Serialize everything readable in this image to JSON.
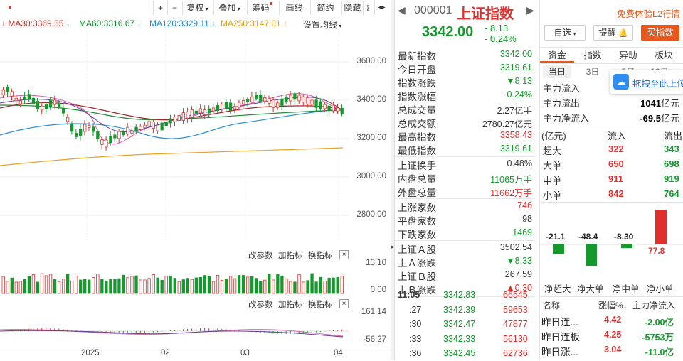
{
  "toolbar": {
    "plus": "+",
    "minus": "−",
    "fuquan": "复权",
    "diejia": "叠加",
    "chouma": "筹码",
    "huaxian": "画线",
    "jianyue": "简约",
    "yincang": "隐藏",
    "nav": "◂▸"
  },
  "ma": {
    "ma30": "MA30:3369.55",
    "ma60": "MA60:3316.67",
    "ma120": "MA120:3329.11",
    "ma250": "MA250:3147.01",
    "setting": "设置均线"
  },
  "price_axis": [
    "3600.00",
    "3400.00",
    "3200.00",
    "3000.00",
    "2800.00"
  ],
  "volume_panel": {
    "change_param": "改参数",
    "add_indicator": "加指标",
    "switch_indicator": "换指标",
    "top": "13.10",
    "bottom": "0.00"
  },
  "macd_panel": {
    "change_param": "改参数",
    "add_indicator": "加指标",
    "switch_indicator": "换指标",
    "top": "161.14",
    "bottom": "-56.27"
  },
  "x_axis": [
    "2025",
    "02",
    "03",
    "04"
  ],
  "header": {
    "code": "000001",
    "name": "上证指数",
    "price": "3342.00",
    "change": "- 8.13",
    "change_pct": "- 0.24%",
    "free_l2": "免费体验L2行情",
    "watch": "自选",
    "alert": "提醒",
    "buy": "买指数"
  },
  "quote_rows": [
    {
      "k": "最新指数",
      "v": "3342.00",
      "c": "green"
    },
    {
      "k": "今日开盘",
      "v": "3319.61",
      "c": "green"
    },
    {
      "k": "指数涨跌",
      "v": "▼8.13",
      "c": "green"
    },
    {
      "k": "指数涨幅",
      "v": "-0.24%",
      "c": "green"
    },
    {
      "k": "总成交量",
      "v": "2.27亿手",
      "c": "black"
    },
    {
      "k": "总成交额",
      "v": "2780.27亿元",
      "c": "black"
    },
    {
      "k": "最高指数",
      "v": "3358.43",
      "c": "red"
    },
    {
      "k": "最低指数",
      "v": "3319.61",
      "c": "green"
    },
    {
      "k": "上证换手",
      "v": "0.48%",
      "c": "black"
    },
    {
      "k": "内盘总量",
      "v": "11065万手",
      "c": "green"
    },
    {
      "k": "外盘总量",
      "v": "11662万手",
      "c": "red"
    },
    {
      "k": "上涨家数",
      "v": "746",
      "c": "red"
    },
    {
      "k": "平盘家数",
      "v": "98",
      "c": "black"
    },
    {
      "k": "下跌家数",
      "v": "1469",
      "c": "green"
    },
    {
      "k": "上证Ａ股",
      "v": "3502.54",
      "c": "black"
    },
    {
      "k": "上Ａ涨跌",
      "v": "▼8.33",
      "c": "green"
    },
    {
      "k": "上证Ｂ股",
      "v": "267.59",
      "c": "black"
    },
    {
      "k": "上Ｂ涨跌",
      "v": "▲0.30",
      "c": "red"
    }
  ],
  "ticks": [
    {
      "t": "11:05",
      "p": "3342.83",
      "v": "66545"
    },
    {
      "t": ":27",
      "p": "3342.39",
      "v": "59653"
    },
    {
      "t": ":30",
      "p": "3342.47",
      "v": "47877"
    },
    {
      "t": ":33",
      "p": "3342.33",
      "v": "56130"
    },
    {
      "t": ":36",
      "p": "3342.45",
      "v": "62736"
    }
  ],
  "tabs": [
    "资金",
    "指数",
    "异动",
    "板块"
  ],
  "subtabs": [
    "当日",
    "3日",
    "5日",
    "10日"
  ],
  "drag_tip": "拖拽至此上传",
  "flow": [
    {
      "k": "主力流入",
      "v": ""
    },
    {
      "k": "主力流出",
      "v": "1041",
      "u": "亿元"
    },
    {
      "k": "主力净流入",
      "v": "-69.5",
      "u": "亿元"
    }
  ],
  "flow_table": {
    "unit": "(亿元)",
    "in": "流入",
    "out": "流出",
    "rows": [
      {
        "k": "超大",
        "in": "322",
        "out": "343"
      },
      {
        "k": "大单",
        "in": "650",
        "out": "698"
      },
      {
        "k": "中单",
        "in": "911",
        "out": "919"
      },
      {
        "k": "小单",
        "in": "842",
        "out": "764"
      }
    ]
  },
  "chart_data": {
    "type": "bar",
    "categories": [
      "净超大",
      "净大单",
      "净中单",
      "净小单"
    ],
    "values": [
      -21.1,
      -48.4,
      -8.3,
      77.8
    ],
    "labels": [
      "-21.1",
      "-48.4",
      "-8.30",
      "77.8"
    ]
  },
  "sector_header": {
    "name": "名称",
    "pct": "涨幅%↓",
    "flow": "主力净流入"
  },
  "sectors": [
    {
      "n": "昨日连...",
      "p": "4.42",
      "f": "-2.00亿"
    },
    {
      "n": "昨日连板",
      "p": "4.25",
      "f": "-5753万"
    },
    {
      "n": "昨日涨...",
      "p": "3.04",
      "f": "-11.0亿"
    }
  ],
  "colors": {
    "up": "#e0302e",
    "down": "#149a2c",
    "accent": "#e8581c"
  }
}
